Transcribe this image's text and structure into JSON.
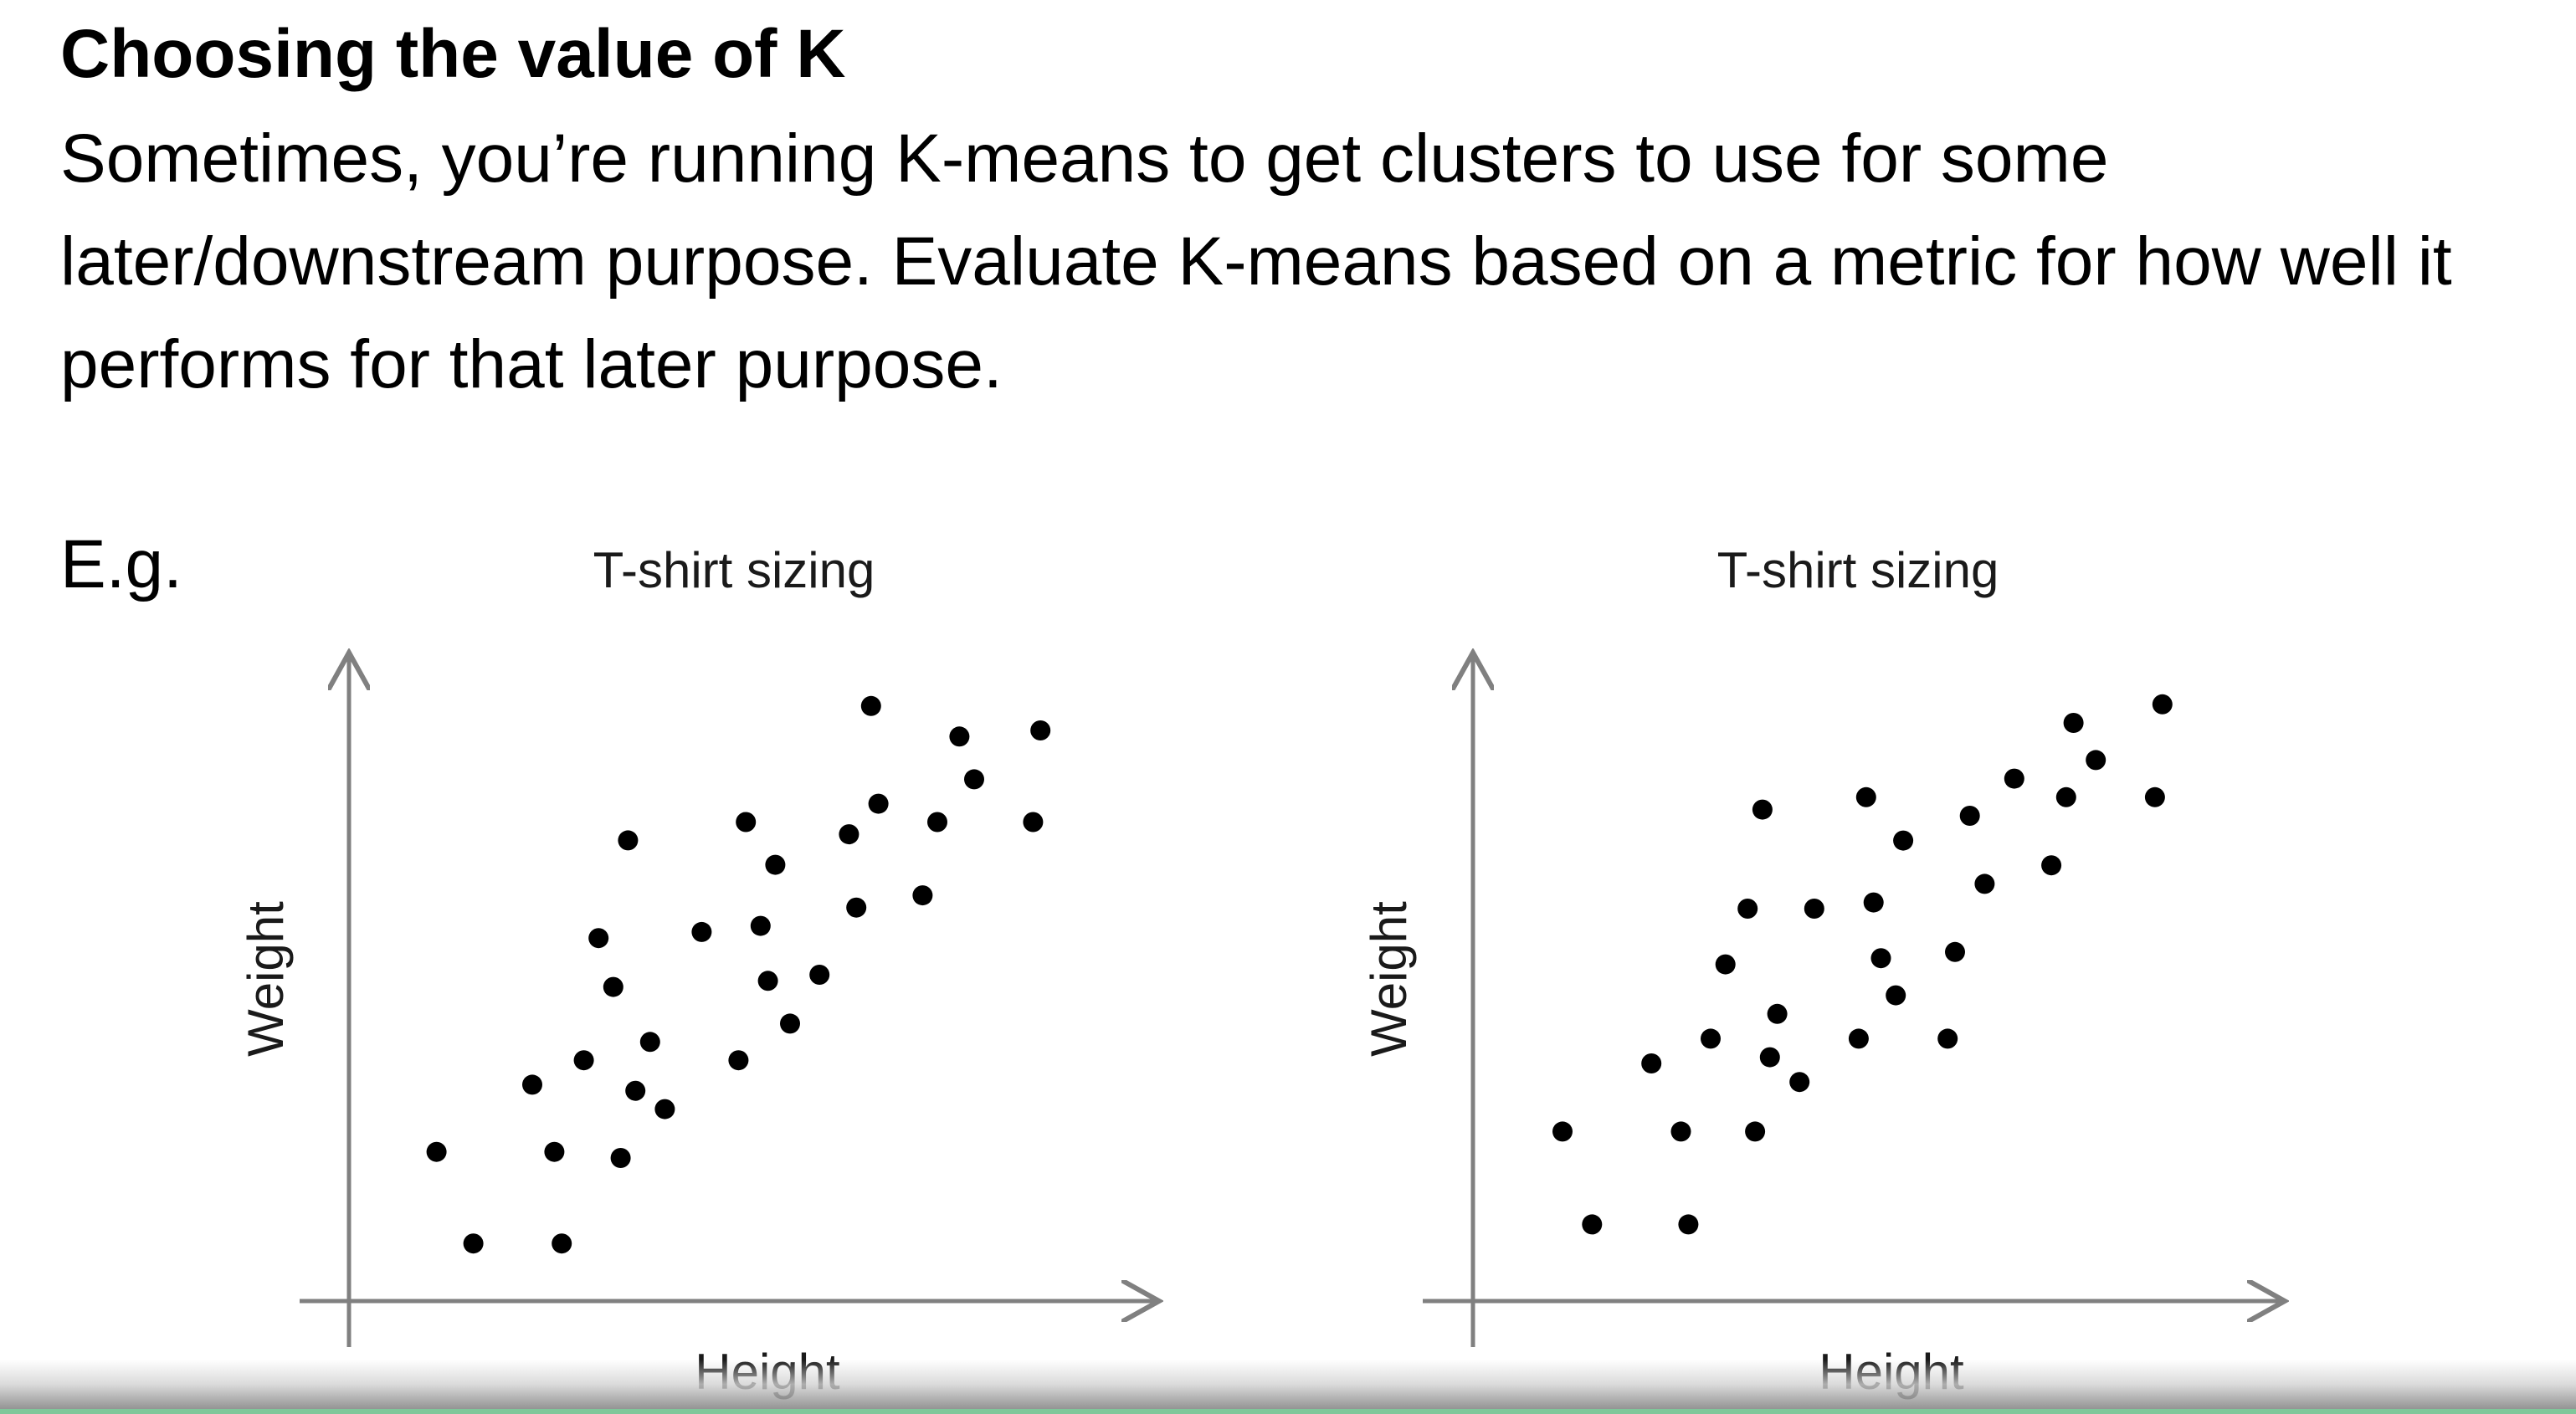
{
  "slide": {
    "title": "Choosing the value of K",
    "body": "Sometimes, you’re running K-means to get clusters to use for some later/downstream purpose. Evaluate K-means based on a metric for how well it performs for that later purpose.",
    "example_label": "E.g."
  },
  "chart_data": [
    {
      "type": "scatter",
      "title": "T-shirt sizing",
      "xlabel": "Height",
      "ylabel": "Weight",
      "xlim": [
        0,
        10
      ],
      "ylim": [
        0,
        10
      ],
      "grid": false,
      "axis_ticks": false,
      "marker_color": "#000000",
      "axis_color": "#808080",
      "points": [
        [
          0.7,
          2.1
        ],
        [
          1.2,
          0.6
        ],
        [
          2.4,
          0.6
        ],
        [
          2.0,
          3.2
        ],
        [
          2.3,
          2.1
        ],
        [
          2.7,
          3.6
        ],
        [
          3.2,
          2.0
        ],
        [
          3.1,
          4.8
        ],
        [
          2.9,
          5.6
        ],
        [
          3.4,
          3.1
        ],
        [
          3.6,
          3.9
        ],
        [
          3.8,
          2.8
        ],
        [
          3.3,
          7.2
        ],
        [
          4.3,
          5.7
        ],
        [
          4.8,
          3.6
        ],
        [
          4.9,
          7.5
        ],
        [
          5.1,
          5.8
        ],
        [
          5.2,
          4.9
        ],
        [
          5.5,
          4.2
        ],
        [
          5.3,
          6.8
        ],
        [
          5.9,
          5.0
        ],
        [
          6.3,
          7.3
        ],
        [
          6.4,
          6.1
        ],
        [
          6.6,
          9.4
        ],
        [
          6.7,
          7.8
        ],
        [
          7.3,
          6.3
        ],
        [
          7.5,
          7.5
        ],
        [
          7.8,
          8.9
        ],
        [
          8.0,
          8.2
        ],
        [
          8.8,
          7.5
        ],
        [
          8.9,
          9.0
        ]
      ]
    },
    {
      "type": "scatter",
      "title": "T-shirt sizing",
      "xlabel": "Height",
      "ylabel": "Weight",
      "xlim": [
        0,
        10
      ],
      "ylim": [
        0,
        10
      ],
      "grid": false,
      "axis_ticks": false,
      "marker_color": "#000000",
      "axis_color": "#808080",
      "points": [
        [
          0.7,
          2.4
        ],
        [
          1.1,
          0.9
        ],
        [
          1.9,
          3.5
        ],
        [
          2.3,
          2.4
        ],
        [
          2.4,
          0.9
        ],
        [
          2.7,
          3.9
        ],
        [
          2.9,
          5.1
        ],
        [
          3.2,
          6.0
        ],
        [
          3.3,
          2.4
        ],
        [
          3.4,
          7.6
        ],
        [
          3.5,
          3.6
        ],
        [
          3.6,
          4.3
        ],
        [
          3.9,
          3.2
        ],
        [
          4.1,
          6.0
        ],
        [
          4.7,
          3.9
        ],
        [
          4.8,
          7.8
        ],
        [
          4.9,
          6.1
        ],
        [
          5.0,
          5.2
        ],
        [
          5.2,
          4.6
        ],
        [
          5.3,
          7.1
        ],
        [
          5.9,
          3.9
        ],
        [
          6.0,
          5.3
        ],
        [
          6.2,
          7.5
        ],
        [
          6.4,
          6.4
        ],
        [
          6.8,
          8.1
        ],
        [
          7.3,
          6.7
        ],
        [
          7.5,
          7.8
        ],
        [
          7.6,
          9.0
        ],
        [
          7.9,
          8.4
        ],
        [
          8.7,
          7.8
        ],
        [
          8.8,
          9.3
        ]
      ]
    }
  ]
}
